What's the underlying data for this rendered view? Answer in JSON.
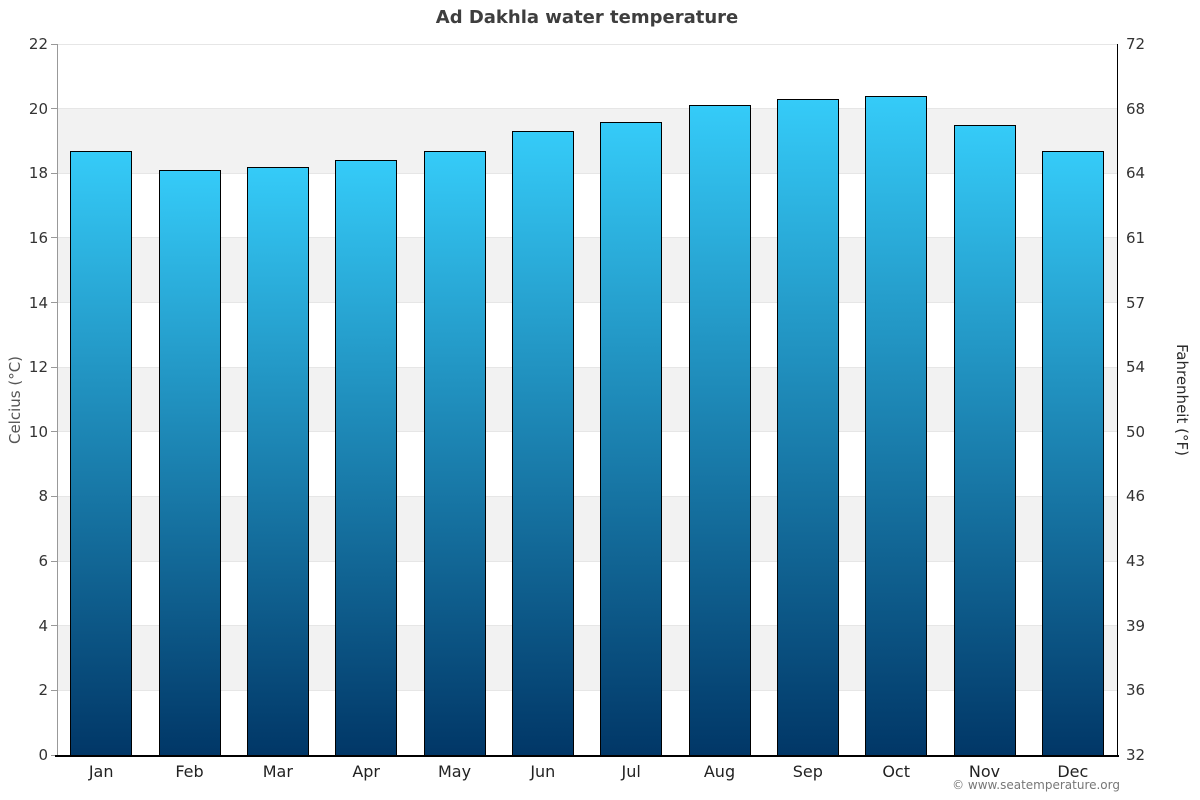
{
  "title": "Ad Dakhla water temperature",
  "credit": "© www.seatemperature.org",
  "chart_data": {
    "type": "bar",
    "title": "Ad Dakhla water temperature",
    "categories": [
      "Jan",
      "Feb",
      "Mar",
      "Apr",
      "May",
      "Jun",
      "Jul",
      "Aug",
      "Sep",
      "Oct",
      "Nov",
      "Dec"
    ],
    "series": [
      {
        "name": "Water temperature",
        "unit": "°C",
        "values": [
          18.7,
          18.1,
          18.2,
          18.4,
          18.7,
          19.3,
          19.6,
          20.1,
          20.3,
          20.4,
          19.5,
          18.7
        ]
      }
    ],
    "xlabel": "",
    "ylabel_left": "Celcius (°C)",
    "ylabel_right": "Fahrenheit (°F)",
    "ylim": [
      0,
      22
    ],
    "yticks_left": [
      0,
      2,
      4,
      6,
      8,
      10,
      12,
      14,
      16,
      18,
      20,
      22
    ],
    "yticks_right": [
      "32",
      "36",
      "39",
      "43",
      "46",
      "50",
      "54",
      "57",
      "61",
      "64",
      "68",
      "72"
    ],
    "grid": "alternating-horizontal-bands",
    "legend": "none",
    "colors": {
      "bar_gradient_top": "#35cbf8",
      "bar_gradient_bottom": "#013767",
      "bar_border": "#000000",
      "band": "#f2f2f2",
      "gridline": "#e6e6e6",
      "axis_left_line": "#999999",
      "axis_right_line": "#000000",
      "axis_bottom_line": "#000000",
      "title_color": "#3e3e3e",
      "tick_label_color": "#333333",
      "credit_color": "#777777"
    }
  }
}
